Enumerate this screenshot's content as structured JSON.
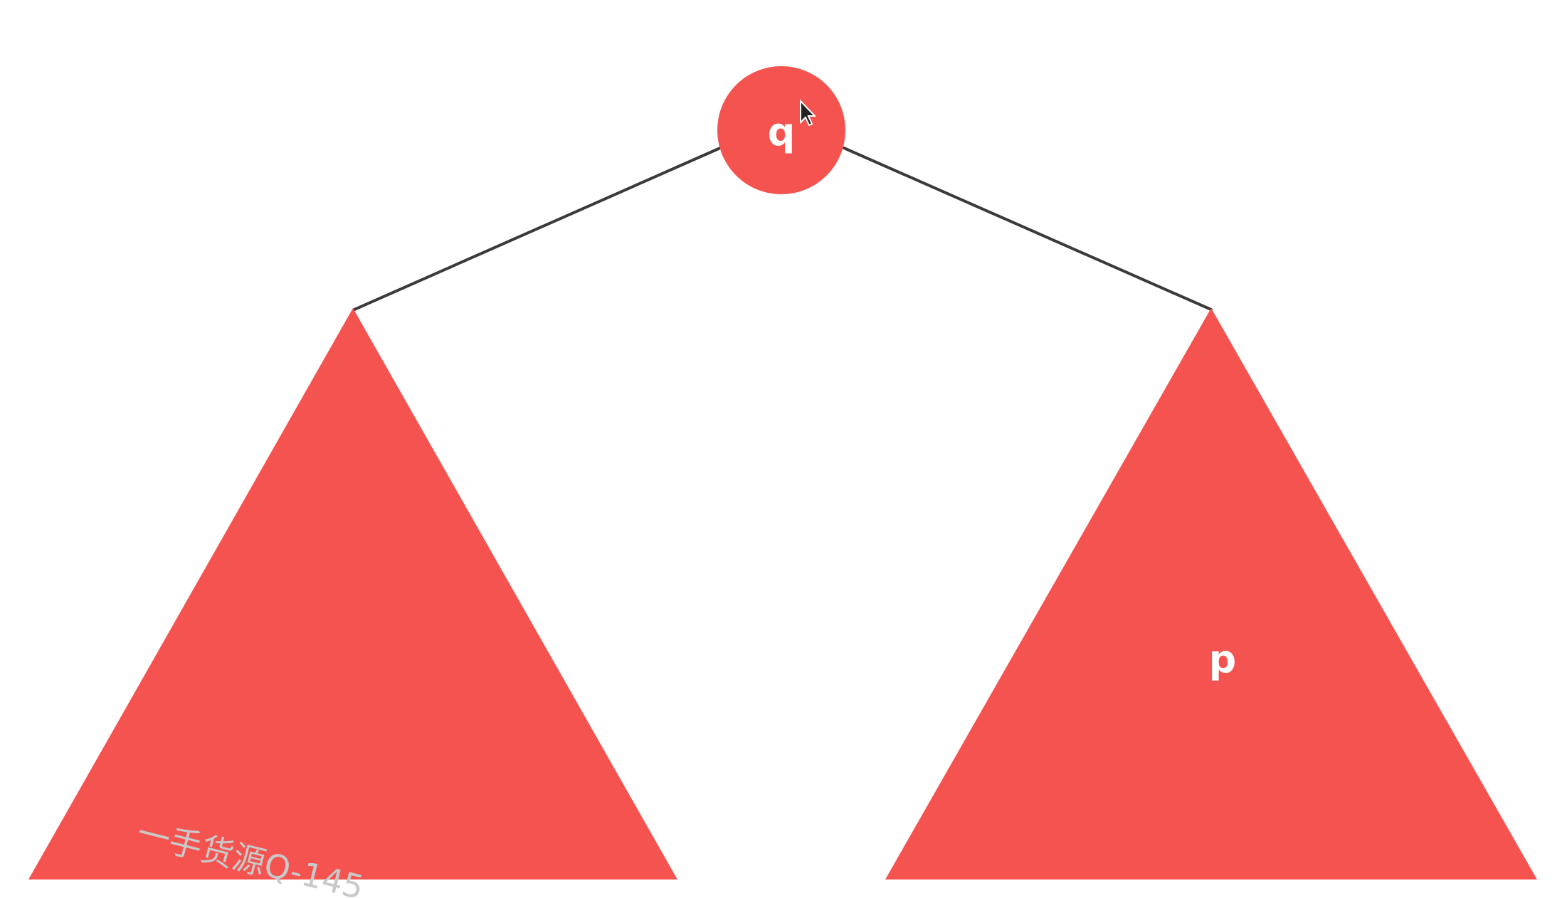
{
  "colors": {
    "background": "#ffffff",
    "node_fill": "#f4534f",
    "edge_stroke": "#3a3a3a",
    "label_text": "#ffffff",
    "watermark_text": "#c9c9c9"
  },
  "tree": {
    "root": {
      "label": "q"
    },
    "left_subtree": {
      "label": ""
    },
    "right_subtree": {
      "label": "p"
    }
  },
  "watermark": {
    "text": "一手货源Q-145"
  },
  "cursor": {
    "icon": "mouse-pointer-icon"
  }
}
